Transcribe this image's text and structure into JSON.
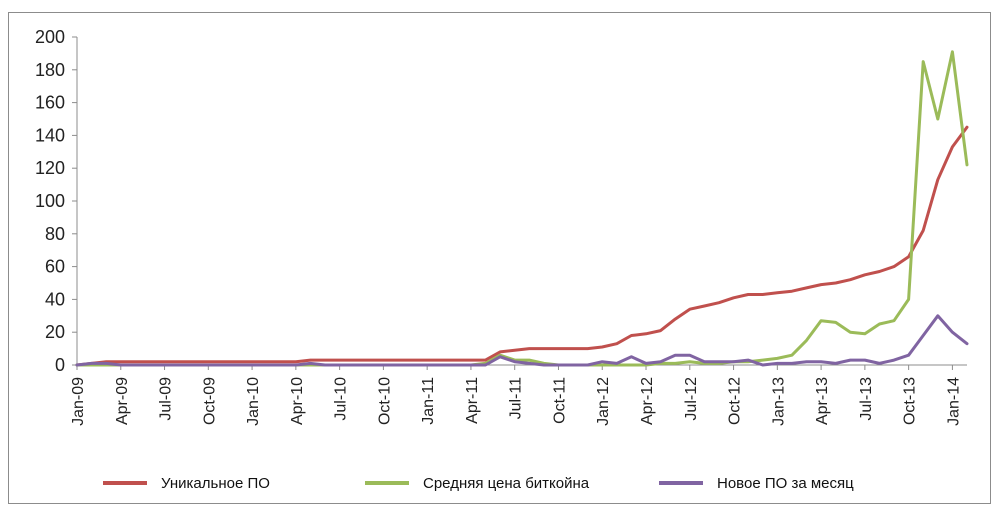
{
  "chart_data": {
    "type": "line",
    "categories": [
      "Jan-09",
      "Feb-09",
      "Mar-09",
      "Apr-09",
      "May-09",
      "Jun-09",
      "Jul-09",
      "Aug-09",
      "Sep-09",
      "Oct-09",
      "Nov-09",
      "Dec-09",
      "Jan-10",
      "Feb-10",
      "Mar-10",
      "Apr-10",
      "May-10",
      "Jun-10",
      "Jul-10",
      "Aug-10",
      "Sep-10",
      "Oct-10",
      "Nov-10",
      "Dec-10",
      "Jan-11",
      "Feb-11",
      "Mar-11",
      "Apr-11",
      "May-11",
      "Jun-11",
      "Jul-11",
      "Aug-11",
      "Sep-11",
      "Oct-11",
      "Nov-11",
      "Dec-11",
      "Jan-12",
      "Feb-12",
      "Mar-12",
      "Apr-12",
      "May-12",
      "Jun-12",
      "Jul-12",
      "Aug-12",
      "Sep-12",
      "Oct-12",
      "Nov-12",
      "Dec-12",
      "Jan-13",
      "Feb-13",
      "Mar-13",
      "Apr-13",
      "May-13",
      "Jun-13",
      "Jul-13",
      "Aug-13",
      "Sep-13",
      "Oct-13",
      "Nov-13",
      "Dec-13",
      "Jan-14",
      "Feb-14"
    ],
    "x_tick_labels": [
      "Jan-09",
      "Apr-09",
      "Jul-09",
      "Oct-09",
      "Jan-10",
      "Apr-10",
      "Jul-10",
      "Oct-10",
      "Jan-11",
      "Apr-11",
      "Jul-11",
      "Oct-11",
      "Jan-12",
      "Apr-12",
      "Jul-12",
      "Oct-12",
      "Jan-13",
      "Apr-13",
      "Jul-13",
      "Oct-13",
      "Jan-14"
    ],
    "y_ticks": [
      0,
      20,
      40,
      60,
      80,
      100,
      120,
      140,
      160,
      180,
      200
    ],
    "ylim": [
      0,
      200
    ],
    "grid": false,
    "legend_position": "bottom",
    "series": [
      {
        "name": "Уникальное ПО",
        "color": "#c0504d",
        "values": [
          0,
          1,
          2,
          2,
          2,
          2,
          2,
          2,
          2,
          2,
          2,
          2,
          2,
          2,
          2,
          2,
          3,
          3,
          3,
          3,
          3,
          3,
          3,
          3,
          3,
          3,
          3,
          3,
          3,
          8,
          9,
          10,
          10,
          10,
          10,
          10,
          11,
          13,
          18,
          19,
          21,
          28,
          34,
          36,
          38,
          41,
          43,
          43,
          44,
          45,
          47,
          49,
          50,
          52,
          55,
          57,
          60,
          66,
          82,
          113,
          133,
          145
        ]
      },
      {
        "name": "Средняя цена биткойна",
        "color": "#9bbb59",
        "values": [
          0,
          0,
          0,
          0,
          0,
          0,
          0,
          0,
          0,
          0,
          0,
          0,
          0,
          0,
          0,
          0,
          0,
          0,
          0,
          0,
          0,
          0,
          0,
          0,
          0,
          0,
          0,
          0,
          1,
          6,
          3,
          3,
          1,
          0,
          0,
          0,
          0,
          0,
          0,
          0,
          1,
          1,
          2,
          1,
          1,
          2,
          2,
          3,
          4,
          6,
          15,
          27,
          26,
          20,
          19,
          25,
          27,
          40,
          185,
          150,
          191,
          122
        ]
      },
      {
        "name": "Новое ПО за месяц",
        "color": "#8064a2",
        "values": [
          0,
          1,
          1,
          0,
          0,
          0,
          0,
          0,
          0,
          0,
          0,
          0,
          0,
          0,
          0,
          0,
          1,
          0,
          0,
          0,
          0,
          0,
          0,
          0,
          0,
          0,
          0,
          0,
          0,
          5,
          2,
          1,
          0,
          0,
          0,
          0,
          2,
          1,
          5,
          1,
          2,
          6,
          6,
          2,
          2,
          2,
          3,
          0,
          1,
          1,
          2,
          2,
          1,
          3,
          3,
          1,
          3,
          6,
          18,
          30,
          20,
          13
        ]
      }
    ]
  }
}
